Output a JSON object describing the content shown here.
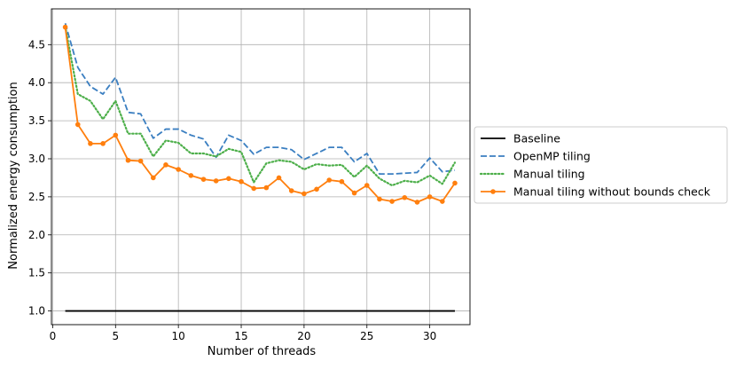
{
  "chart_data": {
    "type": "line",
    "xlabel": "Number of threads",
    "ylabel": "Normalized energy consumption",
    "xlim": [
      -0.1,
      33.2
    ],
    "ylim": [
      0.82,
      4.97
    ],
    "xticks": [
      0,
      5,
      10,
      15,
      20,
      25,
      30
    ],
    "yticks": [
      1.0,
      1.5,
      2.0,
      2.5,
      3.0,
      3.5,
      4.0,
      4.5
    ],
    "ytick_labels": [
      "1.0",
      "1.5",
      "2.0",
      "2.5",
      "3.0",
      "3.5",
      "4.0",
      "4.5"
    ],
    "grid": true,
    "legend_position": "right, outside plot",
    "x": [
      1,
      2,
      3,
      4,
      5,
      6,
      7,
      8,
      9,
      10,
      11,
      12,
      13,
      14,
      15,
      16,
      17,
      18,
      19,
      20,
      21,
      22,
      23,
      24,
      25,
      26,
      27,
      28,
      29,
      30,
      31,
      32
    ],
    "series": [
      {
        "name": "Baseline",
        "color": "#000000",
        "style": "solid",
        "values": [
          1,
          1,
          1,
          1,
          1,
          1,
          1,
          1,
          1,
          1,
          1,
          1,
          1,
          1,
          1,
          1,
          1,
          1,
          1,
          1,
          1,
          1,
          1,
          1,
          1,
          1,
          1,
          1,
          1,
          1,
          1,
          1
        ]
      },
      {
        "name": "OpenMP tiling",
        "color": "#3b7fc1",
        "style": "dashed",
        "values": [
          4.78,
          4.2,
          3.95,
          3.85,
          4.07,
          3.61,
          3.59,
          3.27,
          3.39,
          3.39,
          3.31,
          3.26,
          3.02,
          3.31,
          3.24,
          3.06,
          3.15,
          3.15,
          3.12,
          2.99,
          3.07,
          3.15,
          3.15,
          2.96,
          3.07,
          2.8,
          2.8,
          2.81,
          2.82,
          3.01,
          2.83,
          2.85
        ]
      },
      {
        "name": "Manual tiling",
        "color": "#4daf4a",
        "style": "dotted",
        "values": [
          4.74,
          3.85,
          3.76,
          3.52,
          3.76,
          3.33,
          3.33,
          3.03,
          3.24,
          3.21,
          3.07,
          3.07,
          3.03,
          3.13,
          3.09,
          2.69,
          2.94,
          2.98,
          2.96,
          2.86,
          2.93,
          2.91,
          2.92,
          2.76,
          2.91,
          2.74,
          2.65,
          2.71,
          2.69,
          2.78,
          2.67,
          2.95
        ]
      },
      {
        "name": "Manual tiling without bounds check",
        "color": "#ff7f0e",
        "style": "solid-markers",
        "values": [
          4.73,
          3.45,
          3.2,
          3.2,
          3.31,
          2.98,
          2.97,
          2.75,
          2.92,
          2.86,
          2.78,
          2.73,
          2.71,
          2.74,
          2.7,
          2.61,
          2.62,
          2.75,
          2.58,
          2.54,
          2.6,
          2.72,
          2.7,
          2.55,
          2.65,
          2.47,
          2.44,
          2.49,
          2.43,
          2.5,
          2.44,
          2.68
        ]
      }
    ]
  }
}
